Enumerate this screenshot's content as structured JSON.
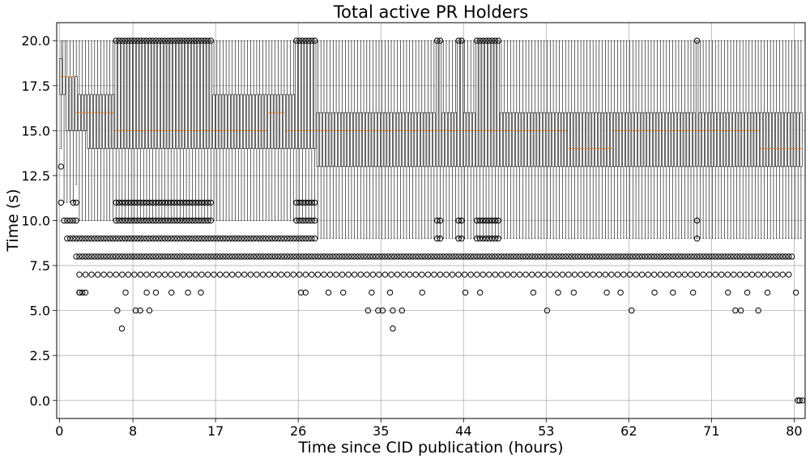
{
  "chart_data": {
    "type": "box",
    "title": "Total active PR Holders",
    "xlabel": "Time since CID publication (hours)",
    "ylabel": "Time (s)",
    "xlim": [
      -0.3,
      81.2
    ],
    "ylim": [
      -1.0,
      21.0
    ],
    "x_ticks": [
      0,
      8,
      17,
      26,
      35,
      44,
      53,
      62,
      71,
      80
    ],
    "y_ticks": [
      0.0,
      2.5,
      5.0,
      7.5,
      10.0,
      12.5,
      15.0,
      17.5,
      20.0
    ],
    "y_tick_labels": [
      "0.0",
      "2.5",
      "5.0",
      "7.5",
      "10.0",
      "12.5",
      "15.0",
      "17.5",
      "20.0"
    ],
    "grid": true,
    "box_interval_hours": 0.333,
    "box_segments": [
      {
        "from": 0.0,
        "to": 0.34,
        "q1": 17,
        "median": 18,
        "q3": 19,
        "whislo": 14,
        "whishi": 20,
        "fliers": [
          13,
          11
        ]
      },
      {
        "from": 0.34,
        "to": 0.67,
        "q1": 17,
        "median": 18,
        "q3": 20,
        "whislo": 11,
        "whishi": 20,
        "fliers": [
          13,
          12,
          10
        ]
      },
      {
        "from": 0.67,
        "to": 1.5,
        "q1": 15,
        "median": 17,
        "q3": 18,
        "whislo": 11,
        "whishi": 20,
        "fliers": [
          10,
          9
        ]
      },
      {
        "from": 1.5,
        "to": 1.85,
        "q1": 15,
        "median": 16,
        "q3": 18,
        "whislo": 12,
        "whishi": 20,
        "fliers": [
          11,
          10,
          9,
          8
        ]
      },
      {
        "from": 1.85,
        "to": 3.0,
        "q1": 15,
        "median": 16,
        "q3": 17,
        "whislo": 10,
        "whishi": 20,
        "fliers": [
          9,
          8,
          7,
          6
        ]
      },
      {
        "from": 3.0,
        "to": 5.85,
        "q1": 14,
        "median": 16,
        "q3": 17,
        "whislo": 10,
        "whishi": 20,
        "fliers": [
          9,
          8,
          7
        ]
      },
      {
        "from": 5.85,
        "to": 16.6,
        "q1": 14,
        "median": 15,
        "q3": 16,
        "whislo": 10,
        "whishi": 20,
        "fliers": [
          9,
          8,
          7
        ]
      },
      {
        "from": 16.6,
        "to": 17.3,
        "q1": 14,
        "median": 15,
        "q3": 17,
        "whislo": 10,
        "whishi": 20,
        "fliers": [
          9,
          8,
          7
        ]
      },
      {
        "from": 17.3,
        "to": 25.8,
        "q1": 14,
        "median": 15,
        "q3": 17,
        "whislo": 10,
        "whishi": 20,
        "fliers": [
          9,
          8,
          7
        ]
      },
      {
        "from": 25.8,
        "to": 28.0,
        "q1": 14,
        "median": 15,
        "q3": 16,
        "whislo": 10,
        "whishi": 20,
        "fliers": [
          9,
          8,
          7
        ]
      },
      {
        "from": 28.0,
        "to": 50.0,
        "q1": 13,
        "median": 15,
        "q3": 16,
        "whislo": 9,
        "whishi": 20,
        "fliers": [
          8,
          7
        ]
      },
      {
        "from": 50.0,
        "to": 70.0,
        "q1": 13,
        "median": 15,
        "q3": 16,
        "whislo": 9,
        "whishi": 20,
        "fliers": [
          8,
          7
        ]
      },
      {
        "from": 70.0,
        "to": 81.0,
        "q1": 13,
        "median": 15,
        "q3": 16,
        "whislo": 9,
        "whishi": 20,
        "fliers": [
          8,
          7
        ]
      }
    ],
    "median_runs": [
      {
        "from": 0.0,
        "to": 1.7,
        "value": 18
      },
      {
        "from": 1.7,
        "to": 5.9,
        "value": 16
      },
      {
        "from": 5.9,
        "to": 22.7,
        "value": 15
      },
      {
        "from": 22.7,
        "to": 24.6,
        "value": 16
      },
      {
        "from": 24.6,
        "to": 55.3,
        "value": 15
      },
      {
        "from": 55.3,
        "to": 60.4,
        "value": 14
      },
      {
        "from": 60.4,
        "to": 76.3,
        "value": 15
      },
      {
        "from": 76.3,
        "to": 81.0,
        "value": 14
      }
    ],
    "wide_box_ranges": [
      {
        "from": 5.9,
        "to": 16.6,
        "q1": 14,
        "q3": 20,
        "whislo": 10,
        "whishi": 20
      },
      {
        "from": 25.8,
        "to": 27.9,
        "q1": 14,
        "q3": 20,
        "whislo": 10,
        "whishi": 20
      },
      {
        "from": 40.8,
        "to": 41.7,
        "q1": 13,
        "q3": 20,
        "whislo": 9,
        "whishi": 20
      },
      {
        "from": 43.2,
        "to": 44.0,
        "q1": 13,
        "q3": 20,
        "whislo": 9,
        "whishi": 20
      },
      {
        "from": 45.3,
        "to": 47.8,
        "q1": 13,
        "q3": 20,
        "whislo": 9,
        "whishi": 20
      },
      {
        "from": 69.1,
        "to": 69.7,
        "q1": 13,
        "q3": 20,
        "whislo": 9,
        "whishi": 20
      }
    ],
    "low_outliers": [
      {
        "x": 1.5,
        "y": 11
      },
      {
        "x": 2.2,
        "y": 6
      },
      {
        "x": 6.8,
        "y": 4
      },
      {
        "x": 6.3,
        "y": 5
      },
      {
        "x": 7.2,
        "y": 6
      },
      {
        "x": 8.3,
        "y": 5
      },
      {
        "x": 8.8,
        "y": 5
      },
      {
        "x": 9.8,
        "y": 5
      },
      {
        "x": 9.5,
        "y": 6
      },
      {
        "x": 10.5,
        "y": 6
      },
      {
        "x": 12.2,
        "y": 6
      },
      {
        "x": 14.0,
        "y": 6
      },
      {
        "x": 15.4,
        "y": 6
      },
      {
        "x": 26.3,
        "y": 6
      },
      {
        "x": 26.8,
        "y": 6
      },
      {
        "x": 29.3,
        "y": 6
      },
      {
        "x": 30.9,
        "y": 6
      },
      {
        "x": 33.6,
        "y": 5
      },
      {
        "x": 34.0,
        "y": 6
      },
      {
        "x": 34.7,
        "y": 5
      },
      {
        "x": 35.2,
        "y": 5
      },
      {
        "x": 36.3,
        "y": 4
      },
      {
        "x": 36.3,
        "y": 5
      },
      {
        "x": 37.3,
        "y": 5
      },
      {
        "x": 36.0,
        "y": 6
      },
      {
        "x": 39.5,
        "y": 6
      },
      {
        "x": 44.2,
        "y": 6
      },
      {
        "x": 45.8,
        "y": 6
      },
      {
        "x": 51.6,
        "y": 6
      },
      {
        "x": 53.1,
        "y": 5
      },
      {
        "x": 54.3,
        "y": 6
      },
      {
        "x": 56.0,
        "y": 6
      },
      {
        "x": 59.6,
        "y": 6
      },
      {
        "x": 61.1,
        "y": 6
      },
      {
        "x": 62.3,
        "y": 5
      },
      {
        "x": 64.8,
        "y": 6
      },
      {
        "x": 66.8,
        "y": 6
      },
      {
        "x": 69.0,
        "y": 6
      },
      {
        "x": 72.8,
        "y": 6
      },
      {
        "x": 73.6,
        "y": 5
      },
      {
        "x": 74.2,
        "y": 5
      },
      {
        "x": 74.9,
        "y": 6
      },
      {
        "x": 76.1,
        "y": 5
      },
      {
        "x": 77.1,
        "y": 6
      },
      {
        "x": 80.2,
        "y": 6
      },
      {
        "x": 80.6,
        "y": 0
      },
      {
        "x": 80.4,
        "y": 0
      },
      {
        "x": 80.9,
        "y": 0
      }
    ]
  }
}
